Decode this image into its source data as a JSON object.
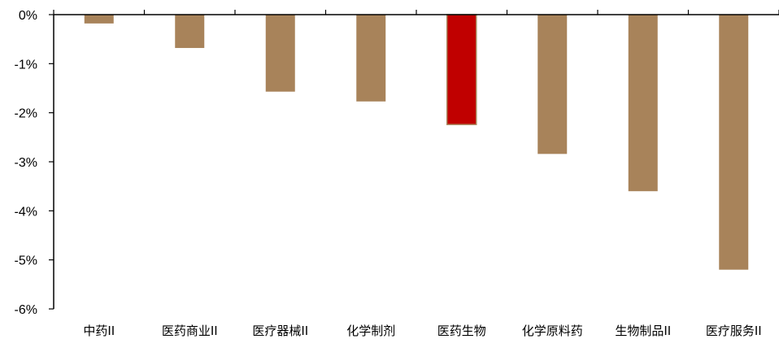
{
  "chart_data": {
    "type": "bar",
    "categories": [
      "中药II",
      "医药商业II",
      "医疗器械II",
      "化学制剂",
      "医药生物",
      "化学原料药",
      "生物制品II",
      "医疗服务II"
    ],
    "values": [
      -0.18,
      -0.68,
      -1.57,
      -1.77,
      -2.24,
      -2.84,
      -3.6,
      -5.2
    ],
    "highlight_index": 4,
    "ylim": [
      -6,
      0
    ],
    "yticks": [
      0,
      -1,
      -2,
      -3,
      -4,
      -5,
      -6
    ],
    "ytick_labels": [
      "0%",
      "-1%",
      "-2%",
      "-3%",
      "-4%",
      "-5%",
      "-6%"
    ],
    "title": "",
    "xlabel": "",
    "ylabel": "",
    "grid": false,
    "colors": {
      "bar": "#A8835A",
      "highlight": "#C00000",
      "axis": "#000000"
    }
  }
}
